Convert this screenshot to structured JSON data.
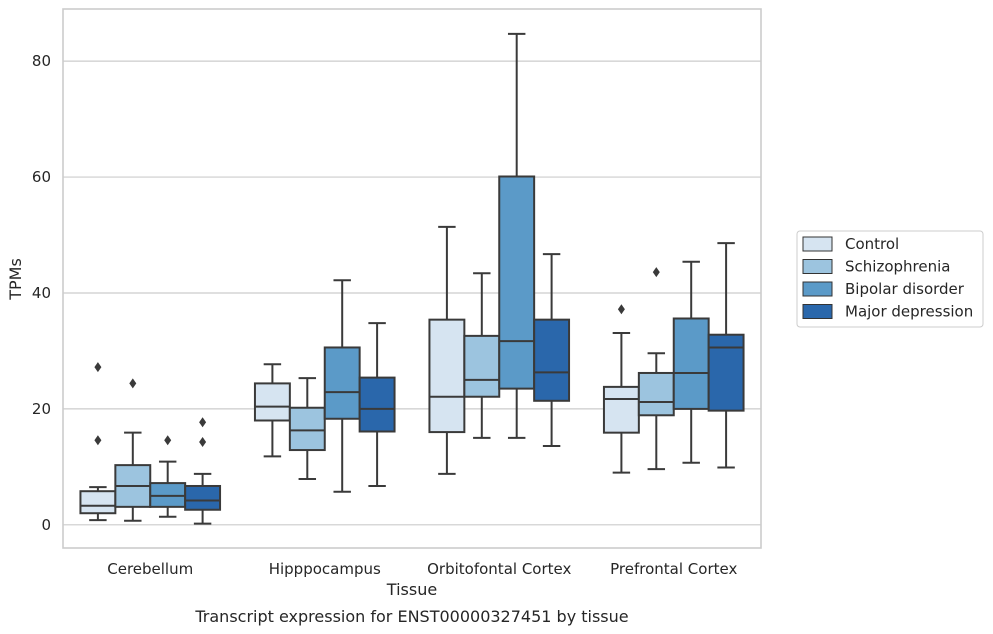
{
  "chart_data": {
    "type": "box",
    "xlabel": "Tissue",
    "ylabel": "TPMs",
    "caption": "Transcript expression for ENST00000327451 by tissue",
    "ylim": [
      -4,
      89
    ],
    "yticks": [
      0,
      20,
      40,
      60,
      80
    ],
    "grid": "horizontal",
    "legend_position": "right",
    "categories": [
      "Cerebellum",
      "Hipppocampus",
      "Orbitofontal Cortex",
      "Prefrontal Cortex"
    ],
    "series": [
      {
        "name": "Control",
        "color": "#d6e4f1",
        "boxes": [
          {
            "whislo": 0.8,
            "q1": 2.0,
            "med": 3.3,
            "q3": 5.8,
            "whishi": 6.5,
            "fliers": [
              14.6,
              27.2
            ]
          },
          {
            "whislo": 11.8,
            "q1": 18.0,
            "med": 20.4,
            "q3": 24.4,
            "whishi": 27.7,
            "fliers": []
          },
          {
            "whislo": 8.8,
            "q1": 16.0,
            "med": 22.1,
            "q3": 35.4,
            "whishi": 51.4,
            "fliers": []
          },
          {
            "whislo": 9.0,
            "q1": 15.9,
            "med": 21.7,
            "q3": 23.8,
            "whishi": 33.1,
            "fliers": [
              37.2
            ]
          }
        ]
      },
      {
        "name": "Schizophrenia",
        "color": "#9cc4df",
        "boxes": [
          {
            "whislo": 0.7,
            "q1": 3.1,
            "med": 6.7,
            "q3": 10.3,
            "whishi": 15.9,
            "fliers": [
              24.4
            ]
          },
          {
            "whislo": 7.9,
            "q1": 12.9,
            "med": 16.3,
            "q3": 20.2,
            "whishi": 25.3,
            "fliers": []
          },
          {
            "whislo": 15.0,
            "q1": 22.1,
            "med": 25.0,
            "q3": 32.6,
            "whishi": 43.4,
            "fliers": []
          },
          {
            "whislo": 9.6,
            "q1": 18.9,
            "med": 21.2,
            "q3": 26.2,
            "whishi": 29.6,
            "fliers": [
              43.6
            ]
          }
        ]
      },
      {
        "name": "Bipolar disorder",
        "color": "#5b9ac8",
        "boxes": [
          {
            "whislo": 1.4,
            "q1": 3.1,
            "med": 5.0,
            "q3": 7.2,
            "whishi": 10.9,
            "fliers": [
              14.6
            ]
          },
          {
            "whislo": 5.7,
            "q1": 18.3,
            "med": 22.9,
            "q3": 30.6,
            "whishi": 42.2,
            "fliers": []
          },
          {
            "whislo": 15.0,
            "q1": 23.5,
            "med": 31.7,
            "q3": 60.1,
            "whishi": 84.7,
            "fliers": []
          },
          {
            "whislo": 10.7,
            "q1": 20.0,
            "med": 26.2,
            "q3": 35.6,
            "whishi": 45.4,
            "fliers": []
          }
        ]
      },
      {
        "name": "Major depression",
        "color": "#2a67ab",
        "boxes": [
          {
            "whislo": 0.2,
            "q1": 2.6,
            "med": 4.2,
            "q3": 6.7,
            "whishi": 8.8,
            "fliers": [
              14.3,
              17.7
            ]
          },
          {
            "whislo": 6.7,
            "q1": 16.1,
            "med": 20.0,
            "q3": 25.4,
            "whishi": 34.8,
            "fliers": []
          },
          {
            "whislo": 13.6,
            "q1": 21.4,
            "med": 26.3,
            "q3": 35.4,
            "whishi": 46.7,
            "fliers": []
          },
          {
            "whislo": 9.9,
            "q1": 19.7,
            "med": 30.6,
            "q3": 32.8,
            "whishi": 48.6,
            "fliers": []
          }
        ]
      }
    ]
  }
}
